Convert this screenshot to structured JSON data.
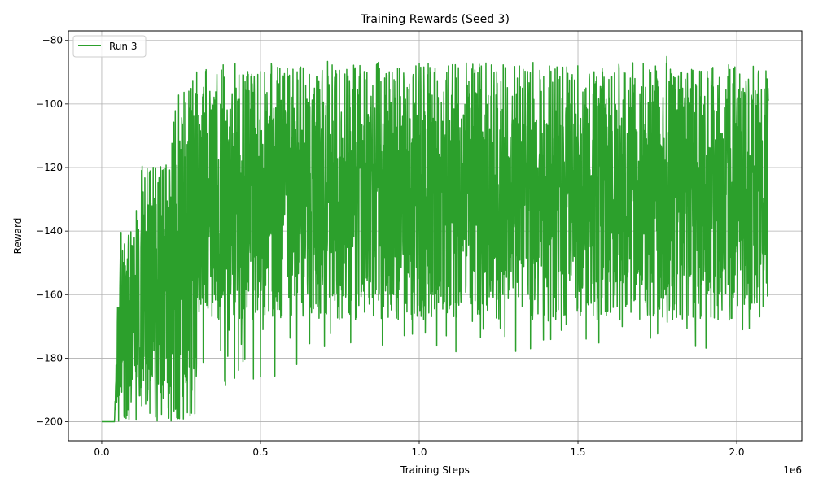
{
  "chart_data": {
    "type": "line",
    "title": "Training Rewards (Seed 3)",
    "xlabel": "Training Steps",
    "ylabel": "Reward",
    "x_offset_text": "1e6",
    "xlim": [
      -0.105,
      2.205
    ],
    "ylim": [
      -206,
      -77
    ],
    "x_ticks": [
      0.0,
      0.5,
      1.0,
      1.5,
      2.0
    ],
    "x_tick_labels": [
      "0.0",
      "0.5",
      "1.0",
      "1.5",
      "2.0"
    ],
    "y_ticks": [
      -200,
      -180,
      -160,
      -140,
      -120,
      -100,
      -80
    ],
    "y_tick_labels": [
      "−200",
      "−180",
      "−160",
      "−140",
      "−120",
      "−100",
      "−80"
    ],
    "grid": true,
    "legend_position": "top-left",
    "series": [
      {
        "name": "Run 3",
        "color": "#2ca02c",
        "x_start": 0.0,
        "x_end": 2.1,
        "envelope": [
          {
            "x": 0.0,
            "lo": -200,
            "hi": -200
          },
          {
            "x": 0.04,
            "lo": -200,
            "hi": -200
          },
          {
            "x": 0.05,
            "lo": -200,
            "hi": -163
          },
          {
            "x": 0.06,
            "lo": -200,
            "hi": -135
          },
          {
            "x": 0.08,
            "lo": -200,
            "hi": -142
          },
          {
            "x": 0.1,
            "lo": -200,
            "hi": -131
          },
          {
            "x": 0.13,
            "lo": -200,
            "hi": -118
          },
          {
            "x": 0.16,
            "lo": -200,
            "hi": -120
          },
          {
            "x": 0.2,
            "lo": -200,
            "hi": -118
          },
          {
            "x": 0.22,
            "lo": -200,
            "hi": -108
          },
          {
            "x": 0.24,
            "lo": -200,
            "hi": -97
          },
          {
            "x": 0.27,
            "lo": -200,
            "hi": -90
          },
          {
            "x": 0.3,
            "lo": -200,
            "hi": -88
          },
          {
            "x": 0.35,
            "lo": -195,
            "hi": -86
          },
          {
            "x": 0.4,
            "lo": -200,
            "hi": -84
          },
          {
            "x": 0.45,
            "lo": -200,
            "hi": -86
          },
          {
            "x": 0.5,
            "lo": -195,
            "hi": -86
          },
          {
            "x": 0.6,
            "lo": -185,
            "hi": -85
          },
          {
            "x": 0.7,
            "lo": -180,
            "hi": -85
          },
          {
            "x": 0.8,
            "lo": -178,
            "hi": -85
          },
          {
            "x": 1.0,
            "lo": -178,
            "hi": -85
          },
          {
            "x": 1.5,
            "lo": -178,
            "hi": -85
          },
          {
            "x": 2.0,
            "lo": -178,
            "hi": -85
          },
          {
            "x": 2.1,
            "lo": -175,
            "hi": -85
          }
        ],
        "base_band": {
          "lo": -168,
          "hi": -87
        }
      }
    ]
  }
}
